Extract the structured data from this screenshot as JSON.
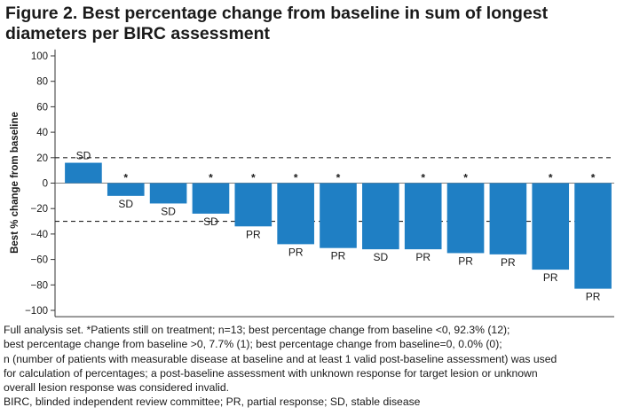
{
  "title": "Figure 2. Best percentage change from baseline in sum of longest diameters per BIRC assessment",
  "chart_data": {
    "type": "bar",
    "ylabel": "Best % change from baseline",
    "ylim": [
      -105,
      105
    ],
    "yticks": [
      100,
      80,
      60,
      40,
      20,
      0,
      -20,
      -40,
      -60,
      -80,
      -100
    ],
    "tick_labels": [
      "100",
      "80",
      "60",
      "40",
      "20",
      "0",
      "−20",
      "−40",
      "−60",
      "−80",
      "−100"
    ],
    "reference_lines": [
      20,
      -30
    ],
    "bar_color": "#1f7fc4",
    "bars": [
      {
        "value": 16,
        "response": "SD",
        "on_treatment": false
      },
      {
        "value": -10,
        "response": "SD",
        "on_treatment": true
      },
      {
        "value": -16,
        "response": "SD",
        "on_treatment": false
      },
      {
        "value": -24,
        "response": "SD",
        "on_treatment": true
      },
      {
        "value": -34,
        "response": "PR",
        "on_treatment": true
      },
      {
        "value": -48,
        "response": "PR",
        "on_treatment": true
      },
      {
        "value": -51,
        "response": "PR",
        "on_treatment": true
      },
      {
        "value": -52,
        "response": "SD",
        "on_treatment": false
      },
      {
        "value": -52,
        "response": "PR",
        "on_treatment": true
      },
      {
        "value": -55,
        "response": "PR",
        "on_treatment": true
      },
      {
        "value": -56,
        "response": "PR",
        "on_treatment": false
      },
      {
        "value": -68,
        "response": "PR",
        "on_treatment": true
      },
      {
        "value": -83,
        "response": "PR",
        "on_treatment": true
      }
    ],
    "marker_symbol": "*"
  },
  "footnotes": {
    "line1": "Full analysis set. *Patients still on treatment; n=13; best percentage change from baseline <0, 92.3% (12);",
    "line2": "best percentage change from baseline >0, 7.7% (1); best percentage change from baseline=0, 0.0% (0);",
    "line3": "n (number of patients with measurable disease at baseline and at least 1 valid post-baseline assessment) was used",
    "line4": "for calculation of percentages; a post-baseline assessment with unknown response for target lesion or unknown",
    "line5": "overall lesion response was considered invalid.",
    "line6": "BIRC, blinded independent review committee; PR, partial response; SD, stable disease"
  }
}
